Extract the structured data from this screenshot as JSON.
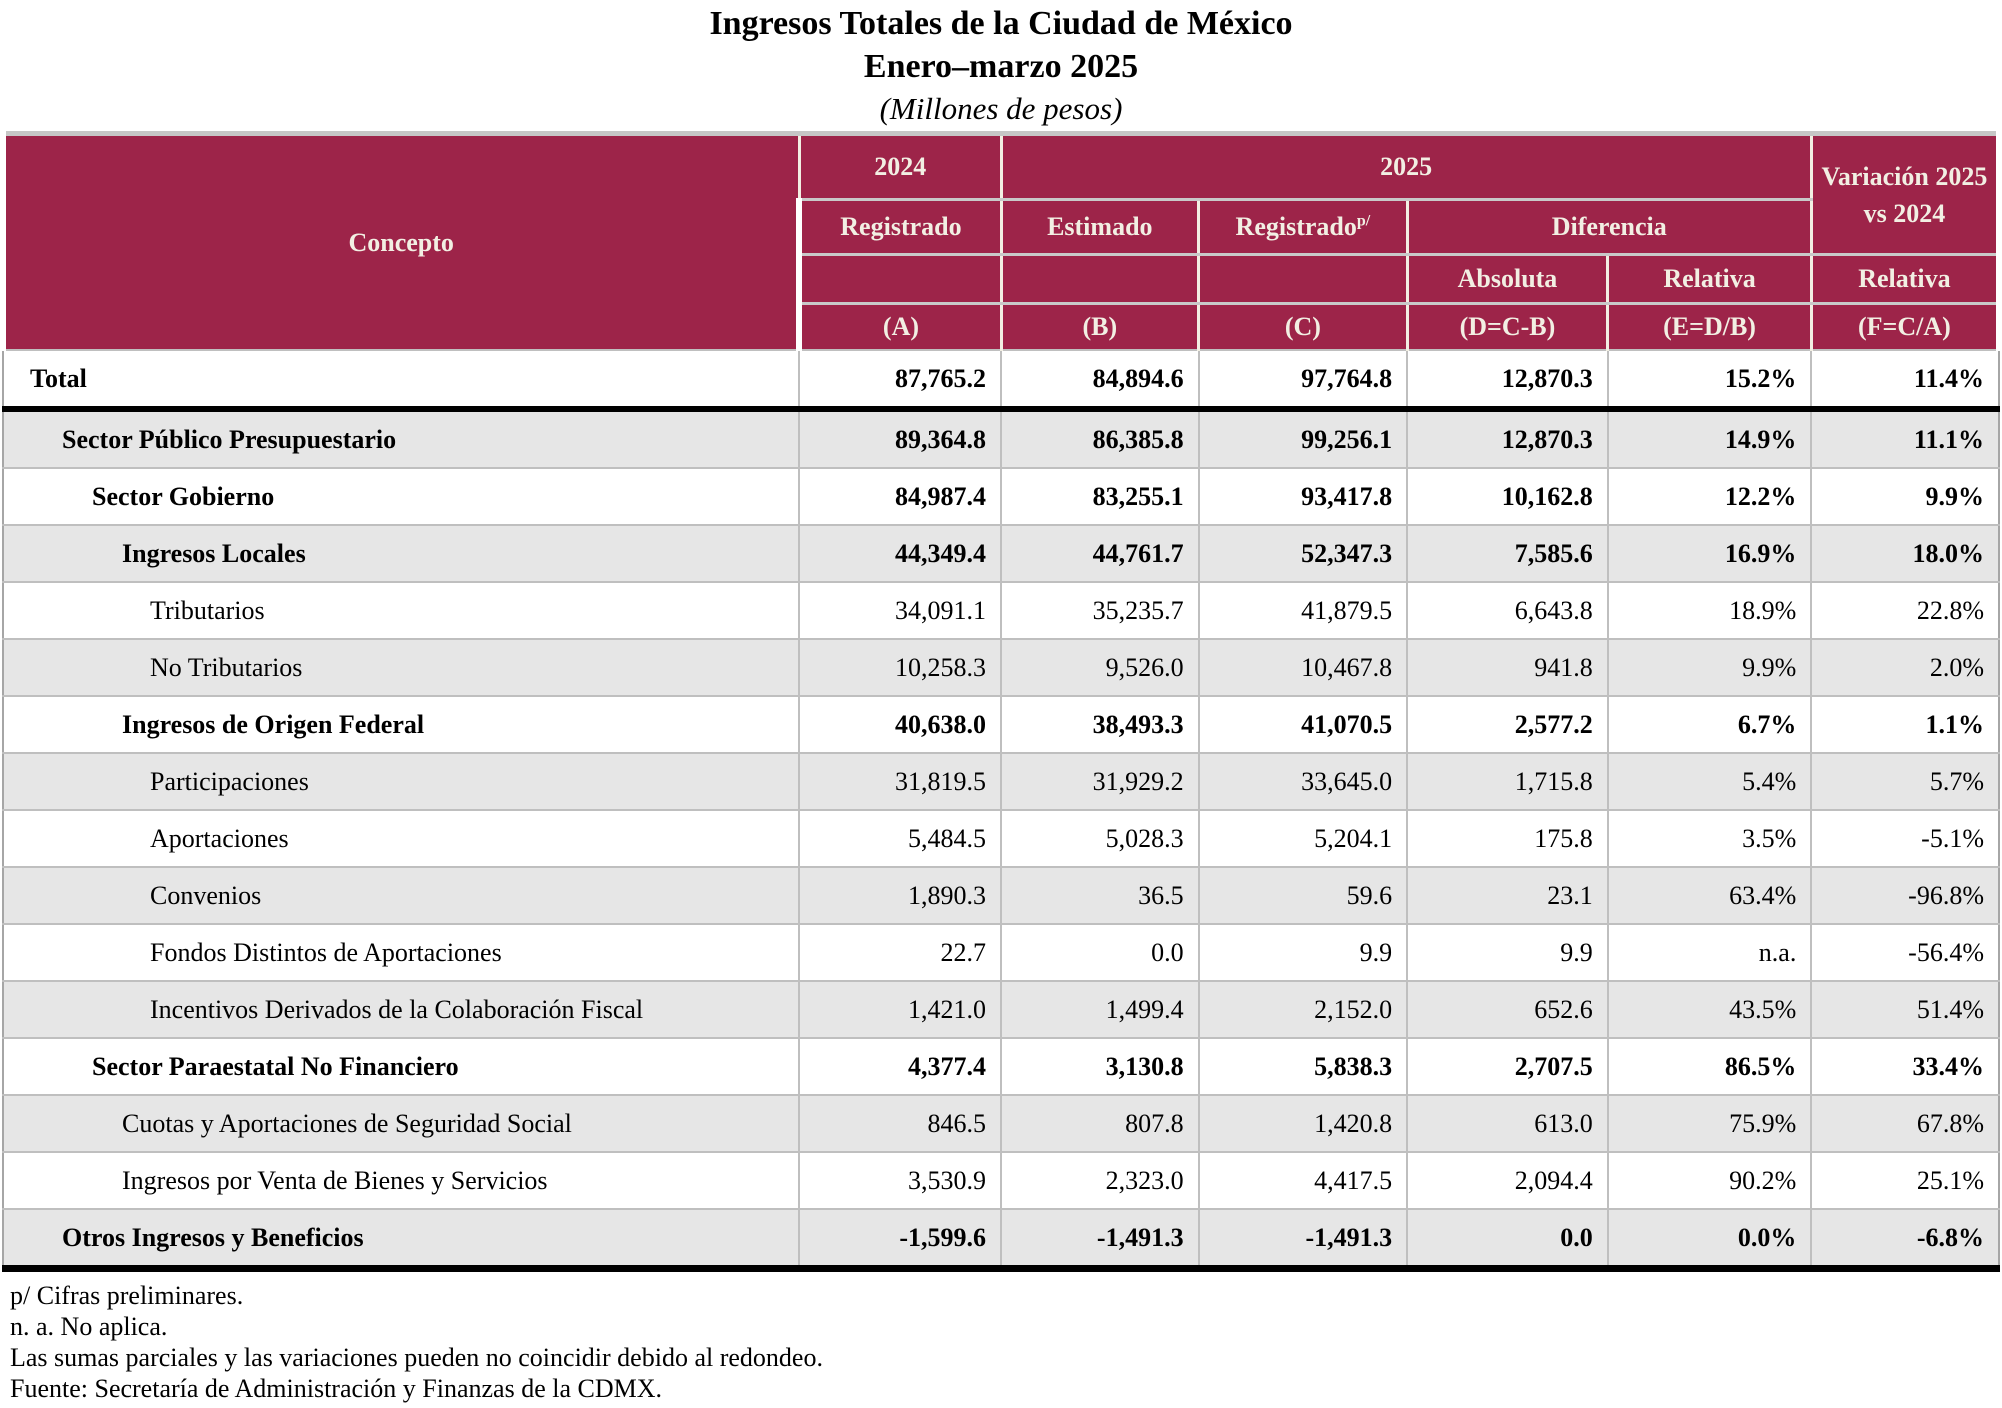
{
  "title": {
    "line1": "Ingresos Totales de la Ciudad de México",
    "line2": "Enero–marzo 2025",
    "line3": "(Millones de pesos)"
  },
  "colors": {
    "header_background": "#9D2449",
    "header_text": "#F2EFE3",
    "row_shade": "#E6E6E6",
    "grid_line": "#BFBFBF"
  },
  "table": {
    "header": {
      "concepto": "Concepto",
      "y2024": "2024",
      "y2025": "2025",
      "variacion": "Variación 2025 vs 2024",
      "registrado": "Registrado",
      "estimado": "Estimado",
      "registrado_p": {
        "base": "Registrado",
        "sup": "p/"
      },
      "diferencia": "Diferencia",
      "absoluta": "Absoluta",
      "relativa_d": "Relativa",
      "relativa_f": "Relativa",
      "formulas": [
        "(A)",
        "(B)",
        "(C)",
        "(D=C-B)",
        "(E=D/B)",
        "(F=C/A)"
      ]
    },
    "rows": [
      {
        "label": "Total",
        "values": [
          "87,765.2",
          "84,894.6",
          "97,764.8",
          "12,870.3",
          "15.2%",
          "11.4%"
        ]
      },
      {
        "label": "Sector Público Presupuestario",
        "values": [
          "89,364.8",
          "86,385.8",
          "99,256.1",
          "12,870.3",
          "14.9%",
          "11.1%"
        ]
      },
      {
        "label": "Sector Gobierno",
        "values": [
          "84,987.4",
          "83,255.1",
          "93,417.8",
          "10,162.8",
          "12.2%",
          "9.9%"
        ]
      },
      {
        "label": "Ingresos Locales",
        "values": [
          "44,349.4",
          "44,761.7",
          "52,347.3",
          "7,585.6",
          "16.9%",
          "18.0%"
        ]
      },
      {
        "label": "Tributarios",
        "values": [
          "34,091.1",
          "35,235.7",
          "41,879.5",
          "6,643.8",
          "18.9%",
          "22.8%"
        ]
      },
      {
        "label": "No Tributarios",
        "values": [
          "10,258.3",
          "9,526.0",
          "10,467.8",
          "941.8",
          "9.9%",
          "2.0%"
        ]
      },
      {
        "label": "Ingresos de Origen Federal",
        "values": [
          "40,638.0",
          "38,493.3",
          "41,070.5",
          "2,577.2",
          "6.7%",
          "1.1%"
        ]
      },
      {
        "label": "Participaciones",
        "values": [
          "31,819.5",
          "31,929.2",
          "33,645.0",
          "1,715.8",
          "5.4%",
          "5.7%"
        ]
      },
      {
        "label": "Aportaciones",
        "values": [
          "5,484.5",
          "5,028.3",
          "5,204.1",
          "175.8",
          "3.5%",
          "-5.1%"
        ]
      },
      {
        "label": "Convenios",
        "values": [
          "1,890.3",
          "36.5",
          "59.6",
          "23.1",
          "63.4%",
          "-96.8%"
        ]
      },
      {
        "label": "Fondos Distintos de Aportaciones",
        "values": [
          "22.7",
          "0.0",
          "9.9",
          "9.9",
          "n.a.",
          "-56.4%"
        ]
      },
      {
        "label": "Incentivos Derivados de la Colaboración Fiscal",
        "values": [
          "1,421.0",
          "1,499.4",
          "2,152.0",
          "652.6",
          "43.5%",
          "51.4%"
        ]
      },
      {
        "label": "Sector Paraestatal No Financiero",
        "values": [
          "4,377.4",
          "3,130.8",
          "5,838.3",
          "2,707.5",
          "86.5%",
          "33.4%"
        ]
      },
      {
        "label": "Cuotas y Aportaciones de Seguridad Social",
        "values": [
          "846.5",
          "807.8",
          "1,420.8",
          "613.0",
          "75.9%",
          "67.8%"
        ]
      },
      {
        "label": "Ingresos por Venta de Bienes y Servicios",
        "values": [
          "3,530.9",
          "2,323.0",
          "4,417.5",
          "2,094.4",
          "90.2%",
          "25.1%"
        ]
      },
      {
        "label": "Otros Ingresos y Beneficios",
        "values": [
          "-1,599.6",
          "-1,491.3",
          "-1,491.3",
          "0.0",
          "0.0%",
          "-6.8%"
        ]
      }
    ]
  },
  "footnotes": [
    "p/ Cifras preliminares.",
    "n. a. No aplica.",
    "Las sumas parciales y las variaciones pueden no coincidir debido al redondeo.",
    "Fuente: Secretaría de Administración y Finanzas de la CDMX."
  ]
}
